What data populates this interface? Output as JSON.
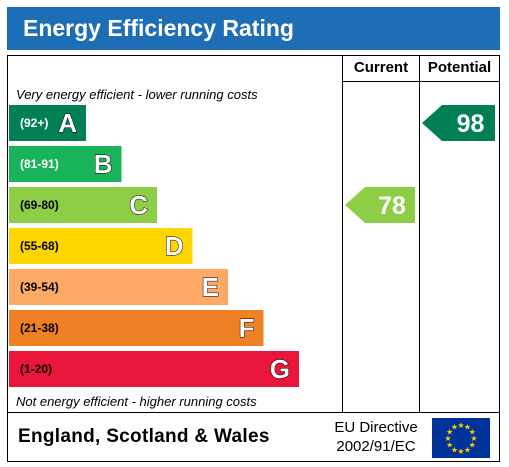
{
  "header": {
    "title": "Energy Efficiency Rating"
  },
  "columns": {
    "current": "Current",
    "potential": "Potential"
  },
  "notes": {
    "top": "Very energy efficient - lower running costs",
    "bottom": "Not energy efficient - higher running costs"
  },
  "chart_data": {
    "type": "bar",
    "title": "Energy Efficiency Rating",
    "categories": [
      "A",
      "B",
      "C",
      "D",
      "E",
      "F",
      "G"
    ],
    "bands": [
      {
        "letter": "A",
        "range": "(92+)",
        "color": "#008054",
        "level": 1
      },
      {
        "letter": "B",
        "range": "(81-91)",
        "color": "#19b459",
        "level": 2
      },
      {
        "letter": "C",
        "range": "(69-80)",
        "color": "#8dce46",
        "level": 3
      },
      {
        "letter": "D",
        "range": "(55-68)",
        "color": "#ffd500",
        "level": 4
      },
      {
        "letter": "E",
        "range": "(39-54)",
        "color": "#fcaa65",
        "level": 5
      },
      {
        "letter": "F",
        "range": "(21-38)",
        "color": "#ef8023",
        "level": 6
      },
      {
        "letter": "G",
        "range": "(1-20)",
        "color": "#e9153b",
        "level": 7
      }
    ],
    "current": {
      "value": 78,
      "band": "C",
      "color": "#8dce46"
    },
    "potential": {
      "value": 98,
      "band": "A",
      "color": "#008054"
    }
  },
  "footer": {
    "country": "England, Scotland & Wales",
    "directive_line1": "EU Directive",
    "directive_line2": "2002/91/EC",
    "flag_icon": "eu-flag-icon",
    "flag_color": "#003399",
    "star_color": "#ffcc00"
  }
}
